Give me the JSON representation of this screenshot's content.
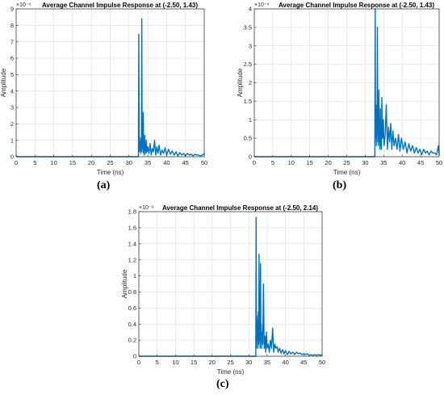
{
  "chart_data": [
    {
      "type": "line",
      "id": "a",
      "title": "Average Channel Impulse Response at (-2.50, 1.43)",
      "xlabel": "Time (ns)",
      "ylabel": "Amplitude",
      "exponent_label": "×10⁻⁹",
      "caption": "(a)",
      "xlim": [
        0,
        50
      ],
      "ylim": [
        0,
        9
      ],
      "xticks": [
        0,
        5,
        10,
        15,
        20,
        25,
        30,
        35,
        40,
        45,
        50
      ],
      "yticks": [
        0,
        1,
        2,
        3,
        4,
        5,
        6,
        7,
        8,
        9
      ],
      "grid": true,
      "color": "#0072bd",
      "series": [
        {
          "x": [
            0,
            32.5,
            32.6,
            32.7,
            32.8,
            32.9,
            33.0,
            33.1,
            33.2,
            33.3,
            33.4,
            33.5,
            33.6,
            33.7,
            33.8,
            33.9,
            34.0,
            34.1,
            34.2,
            34.3,
            34.4,
            34.5,
            34.6,
            34.8,
            35.0,
            35.3,
            35.6,
            35.9,
            36.2,
            36.5,
            36.8,
            37.1,
            37.4,
            37.7,
            38.0,
            38.4,
            38.8,
            39.2,
            39.6,
            40.0,
            40.5,
            41.0,
            41.5,
            42.0,
            42.5,
            43.0,
            43.5,
            44.0,
            44.5,
            45.0,
            45.5,
            46.0,
            46.5,
            47.0,
            47.5,
            48.0,
            48.5,
            49.0,
            49.5,
            50.0
          ],
          "y": [
            0,
            0,
            7.45,
            0.3,
            1.2,
            0.4,
            0.9,
            0.2,
            1.1,
            0.3,
            8.4,
            0.5,
            1.5,
            0.3,
            2.7,
            0.2,
            0.9,
            0.1,
            1.3,
            0.4,
            0.7,
            0.2,
            1.0,
            0.3,
            0.6,
            0.2,
            0.8,
            0.1,
            0.5,
            0.3,
            1.0,
            0.1,
            0.6,
            0.2,
            0.7,
            0.1,
            0.4,
            0.2,
            0.55,
            0.1,
            0.45,
            0.15,
            0.35,
            0.1,
            0.3,
            0.05,
            0.25,
            0.1,
            0.2,
            0.05,
            0.2,
            0.1,
            0.15,
            0.05,
            0.15,
            0.1,
            0.1,
            0.05,
            0.1,
            0.2
          ]
        }
      ]
    },
    {
      "type": "line",
      "id": "b",
      "title": "Average Channel Impulse Response at (-2.50, 1.43)",
      "xlabel": "Time (ns)",
      "ylabel": "Amplitude",
      "exponent_label": "×10⁻⁹",
      "caption": "(b)",
      "xlim": [
        0,
        50
      ],
      "ylim": [
        0,
        4
      ],
      "xticks": [
        0,
        5,
        10,
        15,
        20,
        25,
        30,
        35,
        40,
        45,
        50
      ],
      "yticks": [
        0,
        0.5,
        1,
        1.5,
        2,
        2.5,
        3,
        3.5,
        4
      ],
      "grid": true,
      "color": "#0072bd",
      "series": [
        {
          "x": [
            0,
            32.6,
            32.7,
            32.8,
            32.9,
            33.0,
            33.1,
            33.2,
            33.3,
            33.4,
            33.5,
            33.6,
            33.7,
            33.8,
            33.9,
            34.0,
            34.1,
            34.2,
            34.3,
            34.4,
            34.5,
            34.7,
            34.9,
            35.1,
            35.4,
            35.7,
            36.0,
            36.3,
            36.6,
            36.9,
            37.2,
            37.5,
            37.8,
            38.2,
            38.6,
            39.0,
            39.4,
            39.8,
            40.3,
            40.8,
            41.3,
            41.8,
            42.3,
            42.8,
            43.3,
            43.8,
            44.3,
            44.8,
            45.3,
            45.8,
            46.3,
            46.8,
            47.3,
            47.8,
            48.3,
            48.8,
            49.3,
            49.8,
            50.0
          ],
          "y": [
            0,
            0,
            4.0,
            0.5,
            1.4,
            0.3,
            1.0,
            0.4,
            3.5,
            0.6,
            1.2,
            0.3,
            1.8,
            0.4,
            0.8,
            0.2,
            1.3,
            0.3,
            0.9,
            0.2,
            1.6,
            0.5,
            1.0,
            0.3,
            0.6,
            1.4,
            0.2,
            0.8,
            0.4,
            0.9,
            0.2,
            0.7,
            0.3,
            0.5,
            0.2,
            0.6,
            0.15,
            0.5,
            0.2,
            0.4,
            0.1,
            0.35,
            0.15,
            0.3,
            0.1,
            0.25,
            0.1,
            0.2,
            0.05,
            0.2,
            0.1,
            0.15,
            0.05,
            0.15,
            0.1,
            0.1,
            0.05,
            0.3,
            0.05
          ]
        }
      ]
    },
    {
      "type": "line",
      "id": "c",
      "title": "Average Channel Impulse Response at (-2.50, 2.14)",
      "xlabel": "Time (ns)",
      "ylabel": "Amplitude",
      "exponent_label": "×10⁻⁹",
      "caption": "(c)",
      "xlim": [
        0,
        50
      ],
      "ylim": [
        0,
        1.8
      ],
      "xticks": [
        0,
        5,
        10,
        15,
        20,
        25,
        30,
        35,
        40,
        45,
        50
      ],
      "yticks": [
        0,
        0.2,
        0.4,
        0.6,
        0.8,
        1,
        1.2,
        1.4,
        1.6,
        1.8
      ],
      "grid": true,
      "color": "#0072bd",
      "series": [
        {
          "x": [
            0,
            31.9,
            32.0,
            32.1,
            32.2,
            32.3,
            32.4,
            32.5,
            32.6,
            32.7,
            32.8,
            32.9,
            33.0,
            33.1,
            33.2,
            33.3,
            33.4,
            33.5,
            33.6,
            33.8,
            34.0,
            34.2,
            34.4,
            34.6,
            34.8,
            35.0,
            35.3,
            35.6,
            35.9,
            36.2,
            36.5,
            36.8,
            37.1,
            37.4,
            37.7,
            38.0,
            38.4,
            38.8,
            39.2,
            39.6,
            40.0,
            40.5,
            41.0,
            41.5,
            42.0,
            42.5,
            43.0,
            43.5,
            44.0,
            44.5,
            45.0,
            45.5,
            46.0,
            46.5,
            47.0,
            47.5,
            48.0,
            48.5,
            49.0,
            49.5,
            50.0
          ],
          "y": [
            0,
            0,
            1.73,
            0.1,
            0.5,
            0.2,
            0.45,
            0.1,
            0.55,
            0.15,
            1.27,
            0.2,
            0.35,
            0.1,
            1.15,
            0.2,
            0.4,
            0.1,
            0.3,
            0.15,
            0.9,
            0.1,
            0.25,
            0.05,
            0.3,
            0.1,
            0.15,
            0.05,
            0.2,
            0.1,
            0.35,
            0.05,
            0.15,
            0.1,
            0.12,
            0.05,
            0.1,
            0.04,
            0.08,
            0.03,
            0.07,
            0.02,
            0.06,
            0.03,
            0.05,
            0.02,
            0.05,
            0.03,
            0.04,
            0.02,
            0.03,
            0.02,
            0.03,
            0.01,
            0.02,
            0.01,
            0.02,
            0.01,
            0.02,
            0.01,
            0.02
          ]
        }
      ]
    }
  ]
}
